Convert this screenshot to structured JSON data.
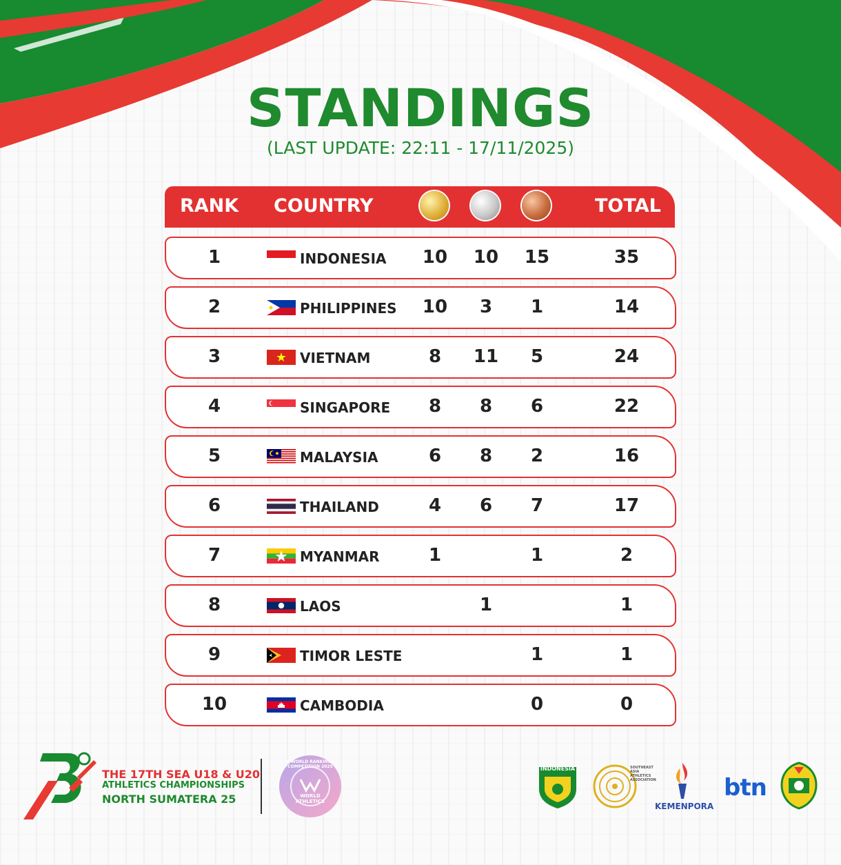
{
  "title": "STANDINGS",
  "subtitle": "(LAST UPDATE: 22:11 - 17/11/2025)",
  "header": {
    "rank": "RANK",
    "country": "COUNTRY",
    "total": "TOTAL",
    "medal_icons": [
      "gold-medal-icon",
      "silver-medal-icon",
      "bronze-medal-icon"
    ]
  },
  "rows": [
    {
      "rank": "1",
      "country": "INDONESIA",
      "flag": "indonesia-flag-icon",
      "gold": "10",
      "silver": "10",
      "bronze": "15",
      "total": "35"
    },
    {
      "rank": "2",
      "country": "PHILIPPINES",
      "flag": "philippines-flag-icon",
      "gold": "10",
      "silver": "3",
      "bronze": "1",
      "total": "14"
    },
    {
      "rank": "3",
      "country": "VIETNAM",
      "flag": "vietnam-flag-icon",
      "gold": "8",
      "silver": "11",
      "bronze": "5",
      "total": "24"
    },
    {
      "rank": "4",
      "country": "SINGAPORE",
      "flag": "singapore-flag-icon",
      "gold": "8",
      "silver": "8",
      "bronze": "6",
      "total": "22"
    },
    {
      "rank": "5",
      "country": "MALAYSIA",
      "flag": "malaysia-flag-icon",
      "gold": "6",
      "silver": "8",
      "bronze": "2",
      "total": "16"
    },
    {
      "rank": "6",
      "country": "THAILAND",
      "flag": "thailand-flag-icon",
      "gold": "4",
      "silver": "6",
      "bronze": "7",
      "total": "17"
    },
    {
      "rank": "7",
      "country": "MYANMAR",
      "flag": "myanmar-flag-icon",
      "gold": "1",
      "silver": "",
      "bronze": "1",
      "total": "2"
    },
    {
      "rank": "8",
      "country": "LAOS",
      "flag": "laos-flag-icon",
      "gold": "",
      "silver": "1",
      "bronze": "",
      "total": "1"
    },
    {
      "rank": "9",
      "country": "TIMOR LESTE",
      "flag": "timor-leste-flag-icon",
      "gold": "",
      "silver": "",
      "bronze": "1",
      "total": "1"
    },
    {
      "rank": "10",
      "country": "CAMBODIA",
      "flag": "cambodia-flag-icon",
      "gold": "",
      "silver": "",
      "bronze": "0",
      "total": "0"
    }
  ],
  "footer": {
    "event_line1": "THE 17TH SEA U18 & U20",
    "event_line2": "ATHLETICS CHAMPIONSHIPS",
    "event_line3": "NORTH SUMATERA 25",
    "world_athletics_ring": "A WORLD RANKINGS COMPETITION 2025",
    "world_athletics": "WORLD ATHLETICS",
    "indonesia_badge": "INDONESIA",
    "asean_ring": "SOUTHEAST ASIA ATHLETICS ASSOCIATION",
    "kemenpora": "KEMENPORA",
    "btn": "btn"
  },
  "colors": {
    "green": "#1f8a2e",
    "red": "#e33131",
    "text": "#222222"
  }
}
